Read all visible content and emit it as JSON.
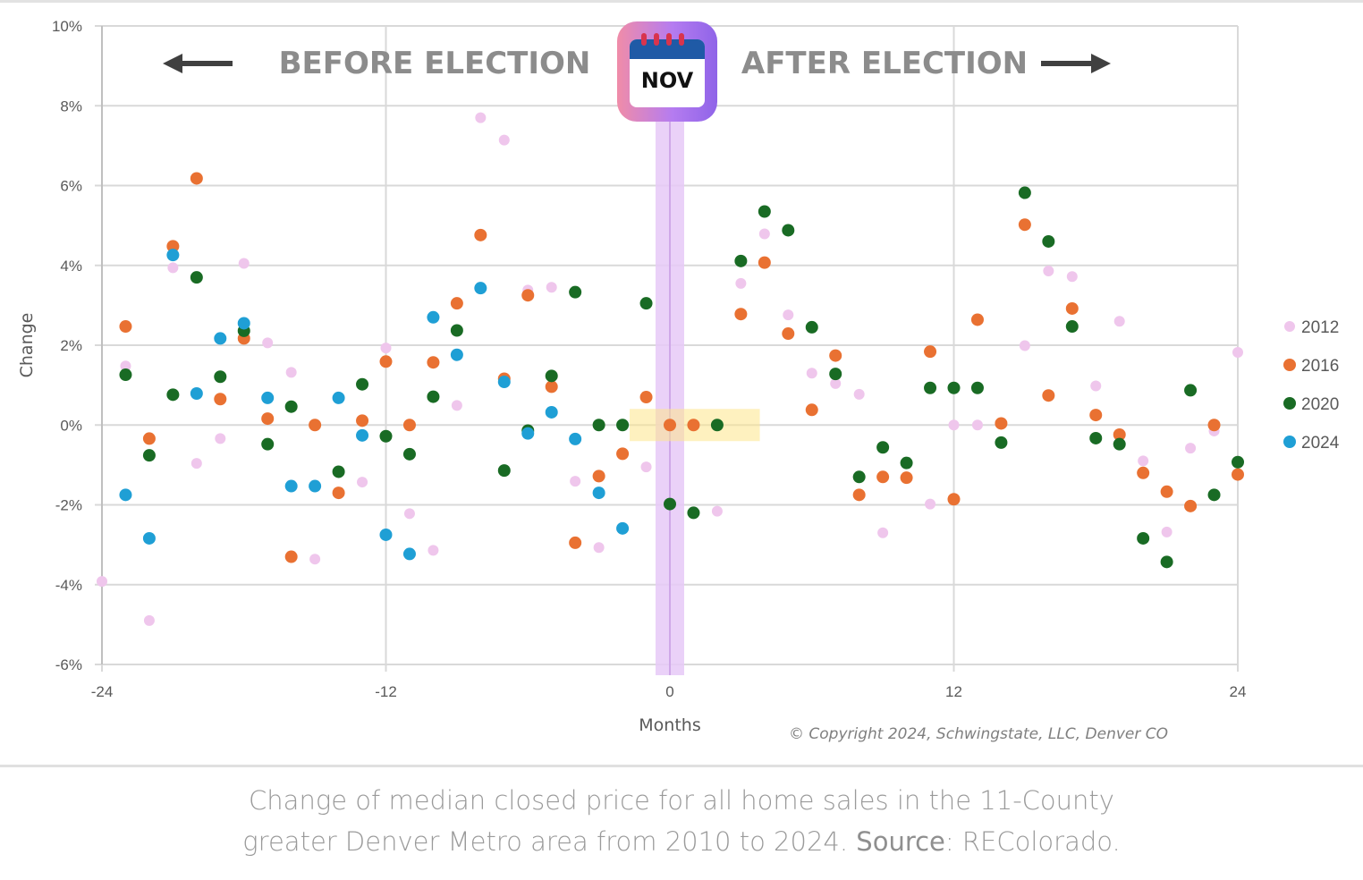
{
  "chart_data": {
    "type": "scatter",
    "title": "",
    "xlabel": "Months",
    "ylabel": "Change",
    "xlim": [
      -24,
      24
    ],
    "ylim": [
      -6,
      10
    ],
    "x_ticks": [
      "-24",
      "-12",
      "0",
      "12",
      "24"
    ],
    "x_tick_values": [
      -24,
      -12,
      0,
      12,
      24
    ],
    "y_ticks": [
      "10%",
      "8%",
      "6%",
      "4%",
      "2%",
      "0%",
      "-2%",
      "-4%",
      "-6%"
    ],
    "y_tick_values": [
      10,
      8,
      6,
      4,
      2,
      0,
      -2,
      -4,
      -6
    ],
    "grid": true,
    "legend_position": "right",
    "annotations": {
      "before": "BEFORE ELECTION",
      "after": "AFTER ELECTION",
      "calendar_label": "NOV",
      "election_month": 0,
      "highlight_range_months": [
        -1.7,
        3.8
      ],
      "copyright": "© Copyright 2024, Schwingstate, LLC, Denver CO"
    },
    "series": [
      {
        "name": "2012",
        "color": "#efc6ec",
        "points": [
          [
            -24,
            -3.92
          ],
          [
            -23,
            1.48
          ],
          [
            -22,
            -4.9
          ],
          [
            -21,
            3.94
          ],
          [
            -20,
            -0.96
          ],
          [
            -19,
            -0.34
          ],
          [
            -18,
            4.05
          ],
          [
            -17,
            2.06
          ],
          [
            -16,
            1.32
          ],
          [
            -15,
            -3.36
          ],
          [
            -13,
            -1.43
          ],
          [
            -12,
            1.93
          ],
          [
            -11,
            -2.22
          ],
          [
            -10,
            -3.14
          ],
          [
            -9,
            0.49
          ],
          [
            -8,
            7.7
          ],
          [
            -7,
            7.14
          ],
          [
            -6,
            3.38
          ],
          [
            -5,
            3.45
          ],
          [
            -4,
            -1.41
          ],
          [
            -3,
            -3.07
          ],
          [
            -1,
            -1.05
          ],
          [
            2,
            -2.16
          ],
          [
            3,
            3.55
          ],
          [
            4,
            4.79
          ],
          [
            5,
            2.76
          ],
          [
            6,
            1.3
          ],
          [
            7,
            1.04
          ],
          [
            8,
            0.77
          ],
          [
            9,
            -2.7
          ],
          [
            11,
            -1.98
          ],
          [
            12,
            0
          ],
          [
            13,
            0
          ],
          [
            15,
            1.99
          ],
          [
            16,
            3.86
          ],
          [
            17,
            3.72
          ],
          [
            18,
            0.98
          ],
          [
            19,
            2.6
          ],
          [
            20,
            -0.9
          ],
          [
            21,
            -2.68
          ],
          [
            22,
            -0.58
          ],
          [
            23,
            -0.15
          ],
          [
            24,
            1.82
          ]
        ]
      },
      {
        "name": "2016",
        "color": "#e97132",
        "points": [
          [
            -23,
            2.47
          ],
          [
            -22,
            -0.34
          ],
          [
            -21,
            4.48
          ],
          [
            -20,
            6.18
          ],
          [
            -19,
            0.65
          ],
          [
            -18,
            2.17
          ],
          [
            -17,
            0.16
          ],
          [
            -16,
            -3.3
          ],
          [
            -15,
            0
          ],
          [
            -14,
            -1.7
          ],
          [
            -13,
            0.11
          ],
          [
            -12,
            1.59
          ],
          [
            -11,
            0
          ],
          [
            -10,
            1.57
          ],
          [
            -9,
            3.05
          ],
          [
            -8,
            4.76
          ],
          [
            -7,
            1.16
          ],
          [
            -6,
            3.25
          ],
          [
            -5,
            0.96
          ],
          [
            -4,
            -2.95
          ],
          [
            -3,
            -1.28
          ],
          [
            -2,
            -0.72
          ],
          [
            -1,
            0.7
          ],
          [
            0,
            0
          ],
          [
            1,
            0
          ],
          [
            3,
            2.78
          ],
          [
            4,
            4.07
          ],
          [
            5,
            2.29
          ],
          [
            6,
            0.38
          ],
          [
            7,
            1.74
          ],
          [
            8,
            -1.75
          ],
          [
            9,
            -1.3
          ],
          [
            10,
            -1.32
          ],
          [
            11,
            1.84
          ],
          [
            12,
            -1.86
          ],
          [
            13,
            2.64
          ],
          [
            14,
            0.04
          ],
          [
            15,
            5.02
          ],
          [
            16,
            0.74
          ],
          [
            17,
            2.92
          ],
          [
            18,
            0.25
          ],
          [
            19,
            -0.24
          ],
          [
            20,
            -1.2
          ],
          [
            21,
            -1.67
          ],
          [
            22,
            -2.03
          ],
          [
            23,
            0
          ],
          [
            24,
            -1.24
          ]
        ]
      },
      {
        "name": "2020",
        "color": "#196b24",
        "points": [
          [
            -23,
            1.26
          ],
          [
            -22,
            -0.76
          ],
          [
            -21,
            0.76
          ],
          [
            -20,
            3.7
          ],
          [
            -19,
            1.21
          ],
          [
            -18,
            2.36
          ],
          [
            -17,
            -0.48
          ],
          [
            -16,
            0.46
          ],
          [
            -14,
            -1.17
          ],
          [
            -13,
            1.02
          ],
          [
            -12,
            -0.28
          ],
          [
            -11,
            -0.73
          ],
          [
            -10,
            0.71
          ],
          [
            -9,
            2.37
          ],
          [
            -7,
            -1.14
          ],
          [
            -6,
            -0.14
          ],
          [
            -5,
            1.23
          ],
          [
            -4,
            3.33
          ],
          [
            -3,
            0
          ],
          [
            -2,
            0
          ],
          [
            -1,
            3.05
          ],
          [
            0,
            -1.98
          ],
          [
            1,
            -2.2
          ],
          [
            2,
            0
          ],
          [
            3,
            4.11
          ],
          [
            4,
            5.35
          ],
          [
            5,
            4.88
          ],
          [
            6,
            2.45
          ],
          [
            7,
            1.28
          ],
          [
            8,
            -1.3
          ],
          [
            9,
            -0.56
          ],
          [
            10,
            -0.95
          ],
          [
            11,
            0.93
          ],
          [
            12,
            0.93
          ],
          [
            13,
            0.93
          ],
          [
            14,
            -0.44
          ],
          [
            15,
            5.82
          ],
          [
            16,
            4.6
          ],
          [
            17,
            2.47
          ],
          [
            18,
            -0.33
          ],
          [
            19,
            -0.48
          ],
          [
            20,
            -2.84
          ],
          [
            21,
            -3.43
          ],
          [
            22,
            0.87
          ],
          [
            23,
            -1.75
          ],
          [
            24,
            -0.93
          ]
        ]
      },
      {
        "name": "2024",
        "color": "#1f9fd5",
        "points": [
          [
            -23,
            -1.75
          ],
          [
            -22,
            -2.84
          ],
          [
            -21,
            4.26
          ],
          [
            -20,
            0.79
          ],
          [
            -19,
            2.17
          ],
          [
            -18,
            2.55
          ],
          [
            -17,
            0.68
          ],
          [
            -16,
            -1.53
          ],
          [
            -15,
            -1.53
          ],
          [
            -14,
            0.68
          ],
          [
            -13,
            -0.26
          ],
          [
            -12,
            -2.75
          ],
          [
            -11,
            -3.23
          ],
          [
            -10,
            2.7
          ],
          [
            -9,
            1.76
          ],
          [
            -8,
            3.43
          ],
          [
            -7,
            1.08
          ],
          [
            -6,
            -0.21
          ],
          [
            -5,
            0.32
          ],
          [
            -4,
            -0.35
          ],
          [
            -3,
            -1.7
          ],
          [
            -2,
            -2.59
          ]
        ]
      }
    ]
  },
  "caption": {
    "line1": "Change of median closed price for all home sales in the 11-County",
    "line2_pre": "greater Denver Metro area from 2010 to 2024. ",
    "source_label": "Source",
    "line2_post": ": REColorado."
  }
}
